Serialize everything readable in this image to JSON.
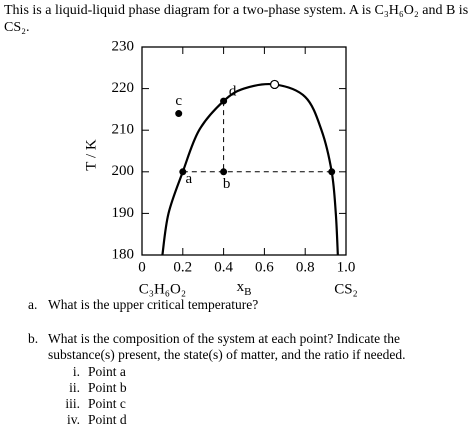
{
  "intro": "This is a liquid-liquid phase diagram for a two-phase system.  A is C₃H₆O₂ and B is CS₂.",
  "chart_data": {
    "type": "line",
    "ylabel": "T / K",
    "xlabel": {
      "symbol": "x",
      "subscript": "B"
    },
    "x_end_labels": [
      "C₃H₆O₂",
      "CS₂"
    ],
    "xlim": [
      0,
      1
    ],
    "ylim": [
      180,
      230
    ],
    "xticks": [
      0,
      0.2,
      0.4,
      0.6,
      0.8,
      {
        "value": 1,
        "label": "1.0"
      }
    ],
    "yticks": [
      180,
      190,
      200,
      210,
      220,
      230
    ],
    "series": [
      {
        "color": "#000000",
        "x": [
          0.1,
          0.13,
          0.2,
          0.28,
          0.4,
          0.5,
          0.65,
          0.8,
          0.88,
          0.93,
          0.95,
          0.96
        ],
        "values": [
          180,
          190,
          200,
          210,
          217,
          220,
          221,
          218,
          210,
          200,
          190,
          180
        ]
      }
    ],
    "critical_point": {
      "x": 0.65,
      "y": 221
    },
    "points": [
      {
        "label": "a",
        "x": 0.2,
        "y": 200
      },
      {
        "label": "b",
        "x": 0.4,
        "y": 200
      },
      {
        "label": "c",
        "x": 0.18,
        "y": 214
      },
      {
        "label": "d",
        "x": 0.4,
        "y": 217
      }
    ],
    "tie_line_end": {
      "x": 0.93,
      "y": 200
    }
  },
  "questions": [
    {
      "marker": "a.",
      "text": "What is the upper critical temperature?"
    },
    {
      "marker": "b.",
      "text": "What is the composition of the system at each point?  Indicate the substance(s) present, the state(s) of matter, and the ratio if needed.",
      "items": [
        {
          "marker": "i.",
          "text": "Point a"
        },
        {
          "marker": "ii.",
          "text": "Point b"
        },
        {
          "marker": "iii.",
          "text": "Point c"
        },
        {
          "marker": "iv.",
          "text": "Point d"
        }
      ]
    }
  ]
}
